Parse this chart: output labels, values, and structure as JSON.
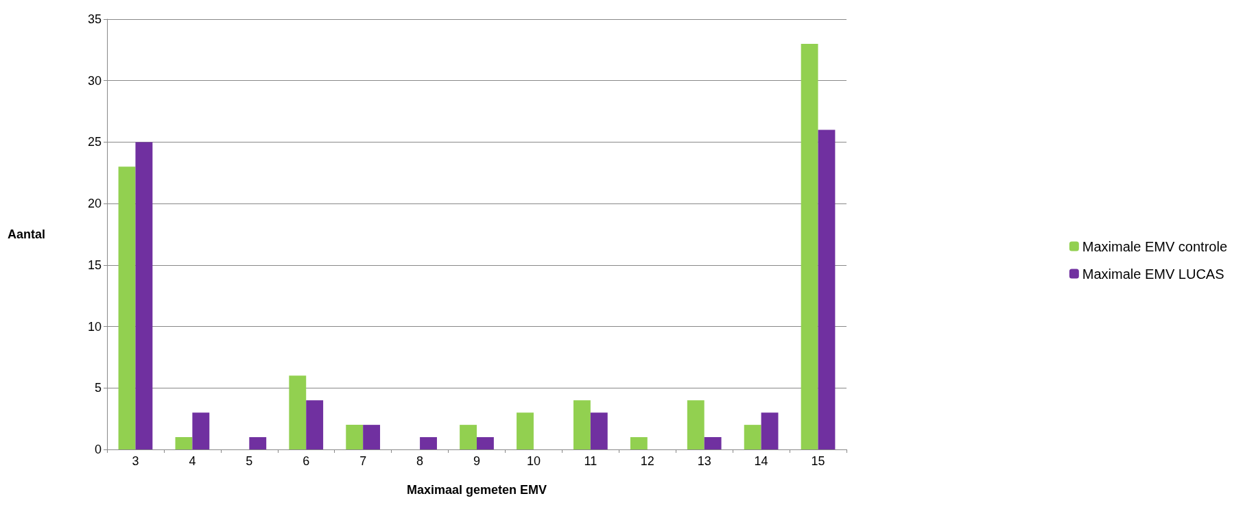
{
  "chart_data": {
    "type": "bar",
    "xlabel": "Maximaal gemeten EMV",
    "ylabel": "Aantal",
    "categories": [
      "3",
      "4",
      "5",
      "6",
      "7",
      "8",
      "9",
      "10",
      "11",
      "12",
      "13",
      "14",
      "15"
    ],
    "series": [
      {
        "name": "Maximale EMV controle",
        "color": "#92d050",
        "values": [
          23,
          1,
          0,
          6,
          2,
          0,
          2,
          3,
          4,
          1,
          4,
          2,
          33
        ]
      },
      {
        "name": "Maximale EMV LUCAS",
        "color": "#7030a0",
        "values": [
          25,
          3,
          1,
          4,
          2,
          1,
          1,
          0,
          3,
          0,
          1,
          3,
          26
        ]
      }
    ],
    "ylim": [
      0,
      35
    ],
    "yticks": [
      0,
      5,
      10,
      15,
      20,
      25,
      30,
      35
    ],
    "grid": "y",
    "legend": "right"
  }
}
